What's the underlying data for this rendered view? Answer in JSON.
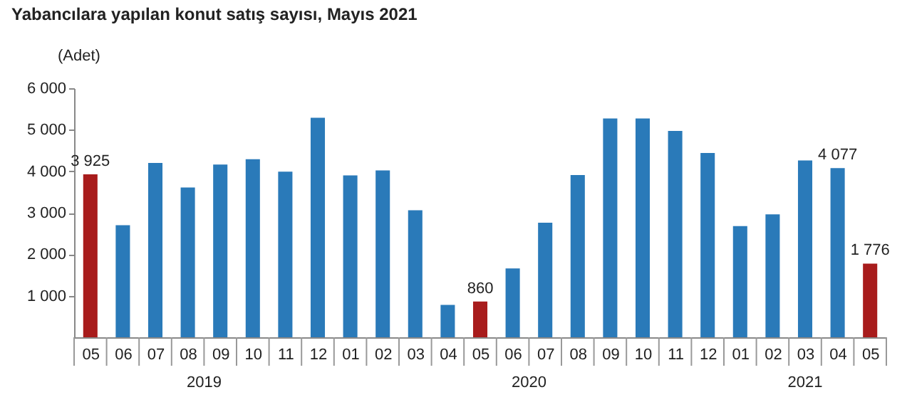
{
  "chart_data": {
    "type": "bar",
    "title": "Yabancılara yapılan konut satış sayısı, Mayıs 2021",
    "ylabel": "(Adet)",
    "categories": [
      "05",
      "06",
      "07",
      "08",
      "09",
      "10",
      "11",
      "12",
      "01",
      "02",
      "03",
      "04",
      "05",
      "06",
      "07",
      "08",
      "09",
      "10",
      "11",
      "12",
      "01",
      "02",
      "03",
      "04",
      "05"
    ],
    "values": [
      3925,
      2700,
      4200,
      3610,
      4160,
      4290,
      3990,
      5290,
      3900,
      4020,
      3060,
      780,
      860,
      1660,
      2760,
      3910,
      5270,
      5270,
      4970,
      4440,
      2680,
      2960,
      4260,
      4077,
      1776
    ],
    "colors": [
      "#a81c1c",
      "#2a7ab9",
      "#2a7ab9",
      "#2a7ab9",
      "#2a7ab9",
      "#2a7ab9",
      "#2a7ab9",
      "#2a7ab9",
      "#2a7ab9",
      "#2a7ab9",
      "#2a7ab9",
      "#2a7ab9",
      "#a81c1c",
      "#2a7ab9",
      "#2a7ab9",
      "#2a7ab9",
      "#2a7ab9",
      "#2a7ab9",
      "#2a7ab9",
      "#2a7ab9",
      "#2a7ab9",
      "#2a7ab9",
      "#2a7ab9",
      "#2a7ab9",
      "#a81c1c"
    ],
    "value_labels": [
      "3 925",
      null,
      null,
      null,
      null,
      null,
      null,
      null,
      null,
      null,
      null,
      null,
      "860",
      null,
      null,
      null,
      null,
      null,
      null,
      null,
      null,
      null,
      null,
      "4 077",
      "1 776"
    ],
    "ylim": [
      0,
      6000
    ],
    "yticks": [
      {
        "value": 1000,
        "label": "1 000"
      },
      {
        "value": 2000,
        "label": "2 000"
      },
      {
        "value": 3000,
        "label": "3 000"
      },
      {
        "value": 4000,
        "label": "4 000"
      },
      {
        "value": 5000,
        "label": "5 000"
      },
      {
        "value": 6000,
        "label": "6 000"
      }
    ],
    "annotations": [
      "2019",
      "2020",
      "2021"
    ],
    "grid": false
  }
}
